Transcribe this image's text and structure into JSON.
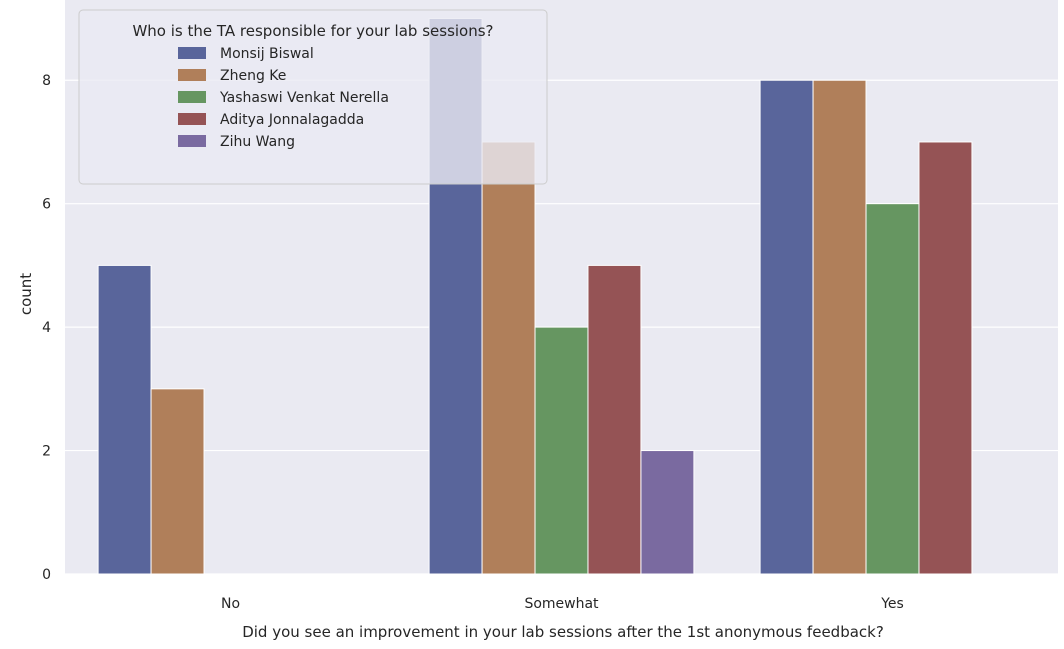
{
  "chart_data": {
    "type": "bar",
    "xlabel": "Did you see an improvement in your lab sessions after the 1st anonymous feedback?",
    "ylabel": "count",
    "categories": [
      "No",
      "Somewhat",
      "Yes"
    ],
    "ylim": [
      0,
      9.3
    ],
    "yticks": [
      0,
      2,
      4,
      6,
      8
    ],
    "grid": true,
    "legend": {
      "title": "Who is the TA responsible for your lab sessions?",
      "placement": "top-left"
    },
    "series": [
      {
        "name": "Monsij Biswal",
        "color": "#59659b",
        "values": [
          5,
          9,
          8
        ]
      },
      {
        "name": "Zheng Ke",
        "color": "#b07f5a",
        "values": [
          3,
          7,
          8
        ]
      },
      {
        "name": "Yashaswi Venkat Nerella",
        "color": "#669661",
        "values": [
          0,
          4,
          6
        ]
      },
      {
        "name": "Aditya Jonnalagadda",
        "color": "#955355",
        "values": [
          0,
          5,
          7
        ]
      },
      {
        "name": "Zihu Wang",
        "color": "#7a6aa0",
        "values": [
          0,
          2,
          0
        ]
      }
    ],
    "background_color": "#eaeaf2",
    "grid_color": "#ffffff"
  }
}
